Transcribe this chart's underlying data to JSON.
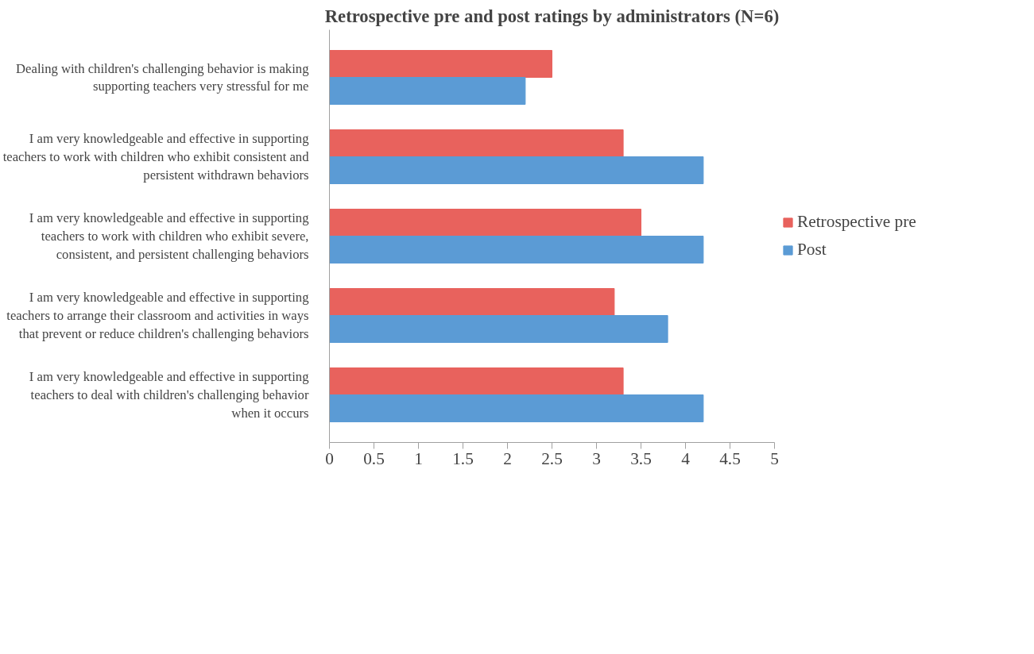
{
  "chart_data": {
    "type": "bar",
    "orientation": "horizontal",
    "title": "Retrospective pre and post ratings by administrators (N=6)",
    "categories": [
      "Dealing with children's challenging behavior is making\nsupporting teachers very stressful for me",
      "I am very knowledgeable and effective in supporting\nteachers to work with children who exhibit consistent and\npersistent withdrawn behaviors",
      "I am very knowledgeable and effective in supporting\nteachers to work with children who exhibit severe,\nconsistent, and persistent challenging behaviors",
      "I am very knowledgeable and effective in supporting\nteachers to arrange their classroom and activities in ways\nthat prevent or reduce children's challenging behaviors",
      "I am very knowledgeable and effective in supporting\nteachers to deal with children's challenging behavior\nwhen it occurs"
    ],
    "series": [
      {
        "name": "Retrospective pre",
        "color": "#e8625d",
        "values": [
          2.5,
          3.3,
          3.5,
          3.2,
          3.3
        ]
      },
      {
        "name": "Post",
        "color": "#5b9bd5",
        "values": [
          2.2,
          4.2,
          4.2,
          3.8,
          4.2
        ]
      }
    ],
    "xlim": [
      0,
      5
    ],
    "xticks": [
      0,
      0.5,
      1,
      1.5,
      2,
      2.5,
      3,
      3.5,
      4,
      4.5,
      5
    ],
    "grid": false,
    "legend": "right"
  }
}
